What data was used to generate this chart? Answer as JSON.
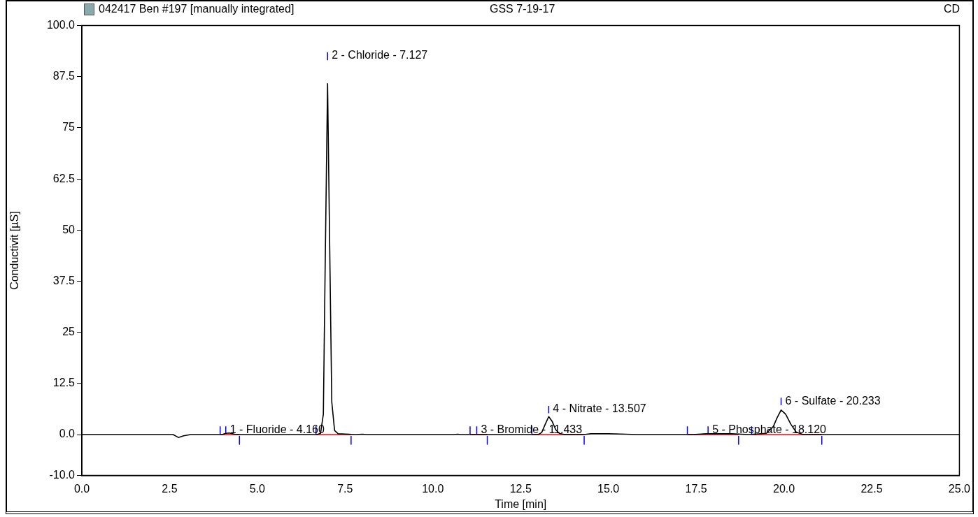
{
  "chart_data": {
    "type": "line",
    "title": "042417 Ben #197 [manually integrated]",
    "subtitle": "GSS 7-19-17",
    "xlabel": "Time [min]",
    "ylabel": "Conductivit [µS]",
    "annotations": [
      "CD",
      {
        "text": "1 - Fluoride - 4.160",
        "x": 4.1,
        "y": 2
      },
      {
        "text": "2 - Chloride - 7.127",
        "x": 7.0,
        "y": 93.5
      },
      {
        "text": "3 - Bromide - 11.433",
        "x": 11.25,
        "y": 2
      },
      {
        "text": "4 - Nitrate - 13.507",
        "x": 13.3,
        "y": 7
      },
      {
        "text": "5 - Phosphate - 18.120",
        "x": 17.84,
        "y": 2
      },
      {
        "text": "6 - Sulfate - 20.233",
        "x": 19.92,
        "y": 9
      }
    ],
    "series": [
      {
        "color": "#000000",
        "x": [
          0,
          2.6,
          2.75,
          2.9,
          3.1,
          4.0,
          4.1,
          4.2,
          4.35,
          4.5,
          6.7,
          6.8,
          6.88,
          6.93,
          7.0,
          7.07,
          7.12,
          7.2,
          7.3,
          7.8,
          8.0,
          8.1,
          10.6,
          10.7,
          10.8,
          13.0,
          13.1,
          13.2,
          13.3,
          13.4,
          13.5,
          13.6,
          13.75,
          14.3,
          14.5,
          15.0,
          15.5,
          15.8,
          17.4,
          17.8,
          18.5,
          19.0,
          19.5,
          19.7,
          19.8,
          19.92,
          20.05,
          20.2,
          20.35,
          20.55,
          25
        ],
        "values": [
          0,
          0,
          -0.7,
          -0.3,
          0,
          0,
          0.3,
          0.4,
          0.1,
          0,
          0,
          0.3,
          5,
          40,
          85.8,
          40,
          8,
          1,
          0.2,
          0,
          0.1,
          0,
          0,
          0.1,
          0,
          0,
          0.5,
          2.5,
          4.4,
          3.2,
          1.2,
          0.3,
          0,
          0,
          0.2,
          0.2,
          0.1,
          0,
          0,
          0.2,
          0.2,
          0,
          0.3,
          2,
          4,
          6,
          5,
          2.5,
          0.6,
          0,
          0
        ]
      },
      {
        "color": "#ff0000",
        "x": [
          3.94,
          4.49,
          4.5,
          6.67,
          7.67,
          7.7,
          11.06,
          11.55,
          11.6,
          12.82,
          14.31,
          14.4,
          17.25,
          18.71,
          18.8,
          19.08,
          21.08
        ],
        "values": [
          0,
          0,
          null,
          0,
          0,
          null,
          0,
          0,
          null,
          0,
          0,
          null,
          0,
          0,
          null,
          0,
          0
        ]
      },
      {
        "color": "#0000ff",
        "x": [
          3.94,
          3.94,
          3.95,
          4.1,
          4.1,
          4.11,
          4.49,
          4.49,
          4.5,
          6.67,
          6.67,
          6.68,
          7.0,
          7.0,
          7.01,
          7.67,
          7.67,
          7.68,
          11.06,
          11.06,
          11.07,
          11.25,
          11.25,
          11.26,
          11.55,
          11.55,
          11.56,
          12.82,
          12.82,
          12.83,
          13.3,
          13.3,
          13.31,
          14.31,
          14.31,
          14.32,
          17.25,
          17.25,
          17.26,
          17.84,
          17.84,
          17.85,
          18.71,
          18.71,
          18.72,
          19.08,
          19.08,
          19.09,
          19.92,
          19.92,
          19.93,
          21.08,
          21.08
        ],
        "values": [
          0.2,
          2,
          null,
          0.2,
          2,
          null,
          -0.4,
          -2.4,
          null,
          0.2,
          2,
          null,
          91.5,
          93.5,
          null,
          -0.4,
          -2.4,
          null,
          0.2,
          2,
          null,
          0.2,
          2,
          null,
          -0.4,
          -2.4,
          null,
          0.2,
          2,
          null,
          5.2,
          7,
          null,
          -0.4,
          -2.4,
          null,
          0.2,
          2,
          null,
          0.2,
          2,
          null,
          -0.4,
          -2.4,
          null,
          0.2,
          2,
          null,
          7.2,
          9,
          null,
          -0.4,
          -2.4
        ]
      }
    ],
    "xlim": [
      0,
      25
    ],
    "xticks": [
      {
        "value": 0,
        "label": "0.0"
      },
      {
        "value": 2.5,
        "label": "2.5"
      },
      {
        "value": 5,
        "label": "5.0"
      },
      {
        "value": 7.5,
        "label": "7.5"
      },
      {
        "value": 10,
        "label": "10.0"
      },
      {
        "value": 12.5,
        "label": "12.5"
      },
      {
        "value": 15,
        "label": "15.0"
      },
      {
        "value": 17.5,
        "label": "17.5"
      },
      {
        "value": 20,
        "label": "20.0"
      },
      {
        "value": 22.5,
        "label": "22.5"
      },
      {
        "value": 25,
        "label": "25.0"
      }
    ],
    "ylim": [
      -10,
      100
    ],
    "yticks": [
      {
        "value": -10,
        "label": "-10.0"
      },
      {
        "value": 0,
        "label": "0.0"
      },
      12.5,
      25,
      37.5,
      50,
      62.5,
      75,
      87.5,
      {
        "value": 100,
        "label": "100.0"
      }
    ],
    "grid": false,
    "legend": false
  }
}
